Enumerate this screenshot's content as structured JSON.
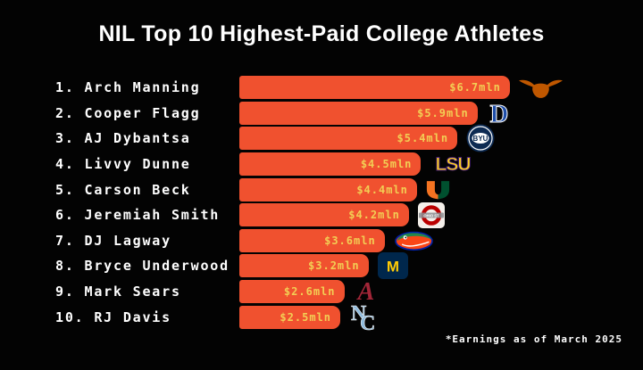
{
  "title": "NIL Top 10 Highest-Paid College Athletes",
  "footnote": "*Earnings as of March 2025",
  "colors": {
    "background": "#030303",
    "bar": "#F0512F",
    "value_text": "#F2CE54",
    "title_text": "#FFFFFF"
  },
  "chart_data": {
    "type": "bar",
    "orientation": "horizontal",
    "title": "NIL Top 10 Highest-Paid College Athletes",
    "unit": "million USD",
    "xlim": [
      0,
      6.7
    ],
    "grid": false,
    "legend": "none",
    "categories": [
      "Arch Manning",
      "Cooper Flagg",
      "AJ Dybantsa",
      "Livvy Dunne",
      "Carson Beck",
      "Jeremiah Smith",
      "DJ Lagway",
      "Bryce Underwood",
      "Mark Sears",
      "RJ Davis"
    ],
    "values": [
      6.7,
      5.9,
      5.4,
      4.5,
      4.4,
      4.2,
      3.6,
      3.2,
      2.6,
      2.5
    ],
    "value_labels": [
      "$6.7mln",
      "$5.9mln",
      "$5.4mln",
      "$4.5mln",
      "$4.4mln",
      "$4.2mln",
      "$3.6mln",
      "$3.2mln",
      "$2.6mln",
      "$2.5mln"
    ],
    "annotation": "*Earnings as of March 2025"
  },
  "rows": [
    {
      "rank": 1,
      "rank_name": "1. Arch Manning",
      "value_mln": 6.7,
      "value_label": "$6.7mln",
      "team": "Texas Longhorns",
      "logo_icon": "texas-longhorns-logo"
    },
    {
      "rank": 2,
      "rank_name": "2. Cooper Flagg",
      "value_mln": 5.9,
      "value_label": "$5.9mln",
      "team": "Duke Blue Devils",
      "logo_icon": "duke-logo"
    },
    {
      "rank": 3,
      "rank_name": "3. AJ Dybantsa",
      "value_mln": 5.4,
      "value_label": "$5.4mln",
      "team": "BYU Cougars",
      "logo_icon": "byu-logo"
    },
    {
      "rank": 4,
      "rank_name": "4. Livvy Dunne",
      "value_mln": 4.5,
      "value_label": "$4.5mln",
      "team": "LSU Tigers",
      "logo_icon": "lsu-logo"
    },
    {
      "rank": 5,
      "rank_name": "5. Carson Beck",
      "value_mln": 4.4,
      "value_label": "$4.4mln",
      "team": "Miami Hurricanes",
      "logo_icon": "miami-logo"
    },
    {
      "rank": 6,
      "rank_name": "6. Jeremiah Smith",
      "value_mln": 4.2,
      "value_label": "$4.2mln",
      "team": "Ohio State Buckeyes",
      "logo_icon": "ohio-state-logo"
    },
    {
      "rank": 7,
      "rank_name": "7. DJ Lagway",
      "value_mln": 3.6,
      "value_label": "$3.6mln",
      "team": "Florida Gators",
      "logo_icon": "florida-gators-logo"
    },
    {
      "rank": 8,
      "rank_name": "8. Bryce Underwood",
      "value_mln": 3.2,
      "value_label": "$3.2mln",
      "team": "Michigan Wolverines",
      "logo_icon": "michigan-logo"
    },
    {
      "rank": 9,
      "rank_name": "9. Mark Sears",
      "value_mln": 2.6,
      "value_label": "$2.6mln",
      "team": "Alabama Crimson Tide",
      "logo_icon": "alabama-logo"
    },
    {
      "rank": 10,
      "rank_name": "10. RJ Davis",
      "value_mln": 2.5,
      "value_label": "$2.5mln",
      "team": "North Carolina Tar Heels",
      "logo_icon": "unc-logo"
    }
  ]
}
